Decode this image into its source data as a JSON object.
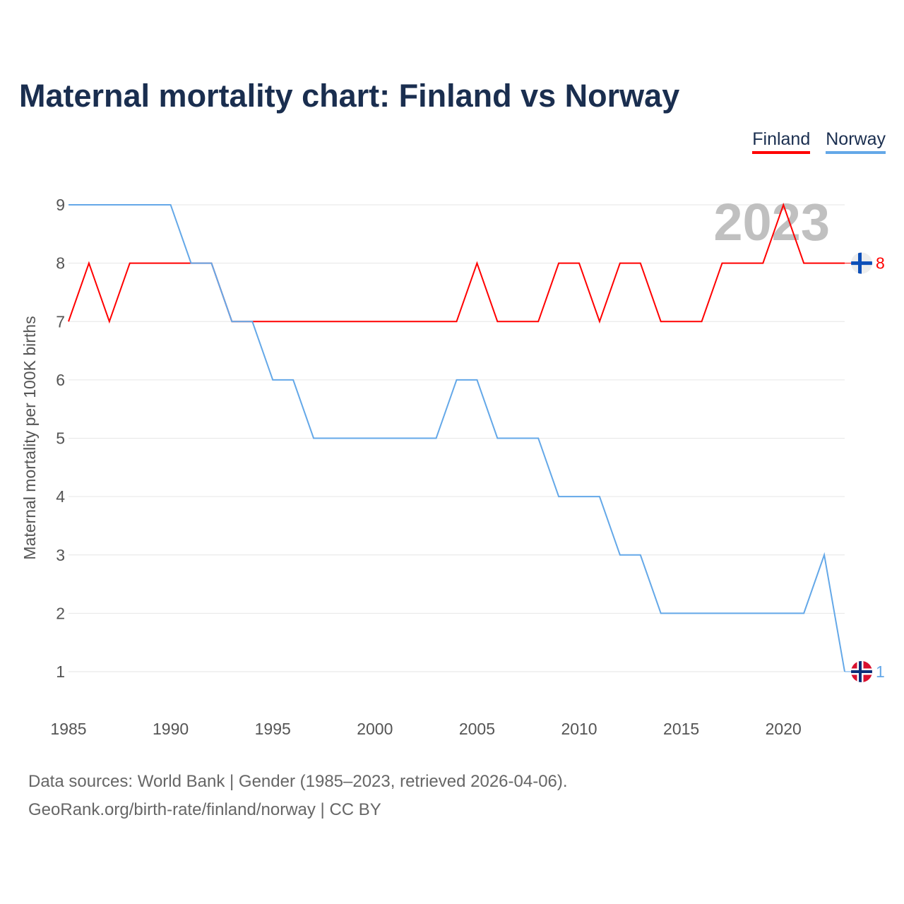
{
  "chart_data": {
    "type": "line",
    "title": "Maternal mortality chart: Finland vs Norway",
    "xlabel": "",
    "ylabel": "Maternal mortality per 100K births",
    "x": [
      1985,
      1986,
      1987,
      1988,
      1989,
      1990,
      1991,
      1992,
      1993,
      1994,
      1995,
      1996,
      1997,
      1998,
      1999,
      2000,
      2001,
      2002,
      2003,
      2004,
      2005,
      2006,
      2007,
      2008,
      2009,
      2010,
      2011,
      2012,
      2013,
      2014,
      2015,
      2016,
      2017,
      2018,
      2019,
      2020,
      2021,
      2022,
      2023
    ],
    "series": [
      {
        "name": "Finland",
        "color": "#ff0000",
        "end_label": "8",
        "values": [
          7,
          8,
          7,
          8,
          8,
          8,
          8,
          8,
          7,
          7,
          7,
          7,
          7,
          7,
          7,
          7,
          7,
          7,
          7,
          7,
          8,
          7,
          7,
          7,
          8,
          8,
          7,
          8,
          8,
          7,
          7,
          7,
          8,
          8,
          8,
          9,
          8,
          8,
          8
        ]
      },
      {
        "name": "Norway",
        "color": "#64a8e8",
        "end_label": "1",
        "values": [
          9,
          9,
          9,
          9,
          9,
          9,
          8,
          8,
          7,
          7,
          6,
          6,
          5,
          5,
          5,
          5,
          5,
          5,
          5,
          6,
          6,
          5,
          5,
          5,
          4,
          4,
          4,
          3,
          3,
          2,
          2,
          2,
          2,
          2,
          2,
          2,
          2,
          3,
          1
        ]
      }
    ],
    "xticks": [
      "1985",
      "1990",
      "1995",
      "2000",
      "2005",
      "2010",
      "2015",
      "2020"
    ],
    "yticks": [
      "1",
      "2",
      "3",
      "4",
      "5",
      "6",
      "7",
      "8",
      "9"
    ],
    "xlim": [
      1985,
      2023
    ],
    "ylim": [
      1,
      9
    ],
    "grid": true,
    "legend_position": "top-right",
    "year_overlay": "2023"
  },
  "footer": {
    "line1": "Data sources: World Bank | Gender (1985–2023, retrieved 2026-04-06).",
    "line2": "GeoRank.org/birth-rate/finland/norway | CC BY"
  }
}
